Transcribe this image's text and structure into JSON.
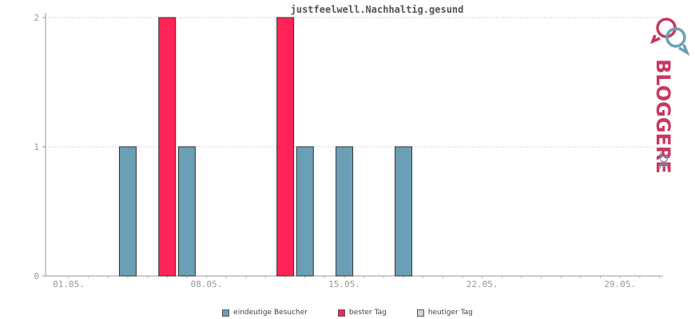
{
  "chart_data": {
    "type": "bar",
    "title": "justfeelwell.Nachhaltig.gesund",
    "x_tick_labels": [
      "01.05.",
      "08.05.",
      "15.05.",
      "22.05.",
      "29.05."
    ],
    "y_ticks": [
      0,
      1,
      2
    ],
    "ylim": [
      0,
      2
    ],
    "grid": "horizontal-dotted",
    "legend_position": "bottom-center",
    "day_range": [
      1,
      31
    ],
    "series": [
      {
        "name": "eindeutige Besucher",
        "color": "#6a9fb5",
        "points": [
          {
            "date": "04.05.",
            "day": 4,
            "value": 1
          },
          {
            "date": "07.05.",
            "day": 7,
            "value": 1
          },
          {
            "date": "13.05.",
            "day": 13,
            "value": 1
          },
          {
            "date": "15.05.",
            "day": 15,
            "value": 1
          },
          {
            "date": "18.05.",
            "day": 18,
            "value": 1
          }
        ]
      },
      {
        "name": "bester Tag",
        "color": "#ff2458",
        "points": [
          {
            "date": "06.05.",
            "day": 6,
            "value": 2
          },
          {
            "date": "12.05.",
            "day": 12,
            "value": 2
          }
        ]
      },
      {
        "name": "heutiger Tag",
        "color": "#d3d3d3",
        "points": []
      }
    ]
  },
  "logo": {
    "text_main": "BLOGGEREI",
    "text_suffix": ".DE",
    "color_main": "#c8385e",
    "color_suffix": "#6a9fb5",
    "icon": "speech-bubbles-icon"
  }
}
